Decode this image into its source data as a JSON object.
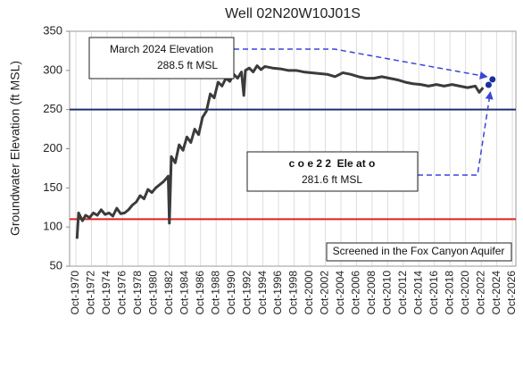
{
  "chart_data": {
    "type": "line",
    "title": "Well 02N20W10J01S",
    "y_label": "Groundwater Elevation (ft MSL)",
    "xlim": [
      1969.95,
      2027.2
    ],
    "ylim": [
      50,
      350
    ],
    "yticks": [
      50,
      100,
      150,
      200,
      250,
      300,
      350
    ],
    "xticks": [
      {
        "value": 1970.75,
        "label": "Oct-1970"
      },
      {
        "value": 1972.75,
        "label": "Oct-1972"
      },
      {
        "value": 1974.75,
        "label": "Oct-1974"
      },
      {
        "value": 1976.75,
        "label": "Oct-1976"
      },
      {
        "value": 1978.75,
        "label": "Oct-1978"
      },
      {
        "value": 1980.75,
        "label": "Oct-1980"
      },
      {
        "value": 1982.75,
        "label": "Oct-1982"
      },
      {
        "value": 1984.75,
        "label": "Oct-1984"
      },
      {
        "value": 1986.75,
        "label": "Oct-1986"
      },
      {
        "value": 1988.75,
        "label": "Oct-1988"
      },
      {
        "value": 1990.75,
        "label": "Oct-1990"
      },
      {
        "value": 1992.75,
        "label": "Oct-1992"
      },
      {
        "value": 1994.75,
        "label": "Oct-1994"
      },
      {
        "value": 1996.75,
        "label": "Oct-1996"
      },
      {
        "value": 1998.75,
        "label": "Oct-1998"
      },
      {
        "value": 2000.75,
        "label": "Oct-2000"
      },
      {
        "value": 2002.75,
        "label": "Oct-2002"
      },
      {
        "value": 2004.75,
        "label": "Oct-2004"
      },
      {
        "value": 2006.75,
        "label": "Oct-2006"
      },
      {
        "value": 2008.75,
        "label": "Oct-2008"
      },
      {
        "value": 2010.75,
        "label": "Oct-2010"
      },
      {
        "value": 2012.75,
        "label": "Oct-2012"
      },
      {
        "value": 2014.75,
        "label": "Oct-2014"
      },
      {
        "value": 2016.75,
        "label": "Oct-2016"
      },
      {
        "value": 2018.75,
        "label": "Oct-2018"
      },
      {
        "value": 2020.75,
        "label": "Oct-2020"
      },
      {
        "value": 2022.75,
        "label": "Oct-2022"
      },
      {
        "value": 2024.75,
        "label": "Oct-2024"
      },
      {
        "value": 2026.75,
        "label": "Oct-2026"
      }
    ],
    "grid": true,
    "line": {
      "color": "#3b3b3b",
      "x": [
        1970.9,
        1971.1,
        1971.6,
        1972,
        1972.5,
        1973,
        1973.5,
        1974,
        1974.5,
        1975,
        1975.5,
        1976,
        1976.5,
        1977,
        1977.5,
        1978,
        1978.5,
        1979,
        1979.5,
        1980,
        1980.5,
        1981,
        1981.5,
        1982,
        1982.6,
        1982.75,
        1983,
        1983.5,
        1984,
        1984.5,
        1985,
        1985.5,
        1986,
        1986.5,
        1987,
        1987.5,
        1988,
        1988.5,
        1989,
        1989.5,
        1990,
        1990.5,
        1991,
        1991.5,
        1992,
        1992.3,
        1992.5,
        1993,
        1993.5,
        1994,
        1994.5,
        1995,
        1996,
        1997,
        1998,
        1999,
        2000,
        2001,
        2002,
        2003,
        2004,
        2005,
        2006,
        2007,
        2008,
        2009,
        2010,
        2011,
        2012,
        2013,
        2014,
        2015,
        2016,
        2017,
        2018,
        2019,
        2020,
        2021,
        2022,
        2022.5,
        2023
      ],
      "values": [
        85,
        118,
        108,
        115,
        112,
        118,
        115,
        122,
        116,
        118,
        114,
        124,
        117,
        118,
        122,
        128,
        132,
        140,
        136,
        148,
        144,
        150,
        154,
        158,
        165,
        105,
        190,
        182,
        205,
        198,
        215,
        208,
        225,
        218,
        240,
        248,
        270,
        265,
        285,
        280,
        290,
        286,
        295,
        290,
        298,
        268,
        300,
        303,
        298,
        306,
        301,
        305,
        303,
        302,
        300,
        300,
        298,
        297,
        296,
        295,
        292,
        297,
        295,
        292,
        290,
        290,
        292,
        290,
        288,
        285,
        283,
        282,
        280,
        282,
        280,
        282,
        280,
        278,
        280,
        272,
        278
      ]
    },
    "markers": {
      "color": "#1a2f9c",
      "x": [
        2023.7,
        2024.2
      ],
      "values": [
        281.6,
        288.5
      ]
    },
    "hlines": [
      {
        "value": 110,
        "color": "#e02020"
      },
      {
        "value": 250,
        "color": "#1f2f6e"
      }
    ],
    "annotations": {
      "march_title": "March 2024 Elevation",
      "march_value": "288.5 ft MSL",
      "sept_title": "c o e 2 2  Ele at o",
      "sept_value": "281.6 ft MSL",
      "screened": "Screened in the Fox Canyon Aquifer"
    }
  }
}
